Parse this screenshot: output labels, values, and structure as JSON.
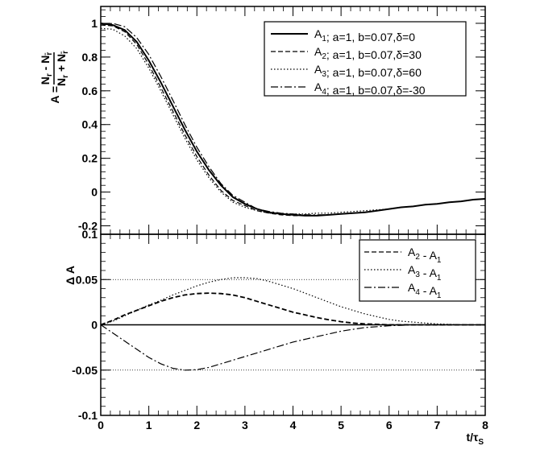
{
  "chart_data": [
    {
      "type": "line",
      "ylabel": "A = (N_r - N_r̄)/(N_r + N_r̄)",
      "xlim": [
        0,
        8
      ],
      "ylim": [
        -0.25,
        1.1
      ],
      "yticks": [
        -0.2,
        0,
        0.2,
        0.4,
        0.6,
        0.8,
        1
      ],
      "ytick_labels": [
        "-0.2",
        "0",
        "0.2",
        "0.4",
        "0.6",
        "0.8",
        "1"
      ],
      "grid": false,
      "legend_position": "top-right",
      "x": [
        0,
        0.25,
        0.5,
        0.75,
        1,
        1.25,
        1.5,
        1.75,
        2,
        2.25,
        2.5,
        2.75,
        3,
        3.25,
        3.5,
        3.75,
        4,
        4.25,
        4.5,
        4.75,
        5,
        5.25,
        5.5,
        5.75,
        6,
        6.25,
        6.5,
        6.75,
        7,
        7.25,
        7.5,
        7.75,
        8
      ],
      "series": [
        {
          "name": "A_1; a=1, b=0.07,δ=0",
          "style": "solid",
          "values": [
            1.0,
            0.99,
            0.96,
            0.89,
            0.78,
            0.65,
            0.51,
            0.37,
            0.24,
            0.13,
            0.04,
            -0.03,
            -0.07,
            -0.1,
            -0.12,
            -0.13,
            -0.135,
            -0.14,
            -0.14,
            -0.135,
            -0.13,
            -0.125,
            -0.12,
            -0.11,
            -0.1,
            -0.09,
            -0.085,
            -0.075,
            -0.07,
            -0.06,
            -0.055,
            -0.045,
            -0.04
          ]
        },
        {
          "name": "A_2; a=1, b=0.07,δ=30",
          "style": "dashed",
          "values": [
            0.99,
            0.985,
            0.95,
            0.875,
            0.755,
            0.62,
            0.48,
            0.34,
            0.21,
            0.1,
            0.01,
            -0.05,
            -0.08,
            -0.11,
            -0.125,
            -0.135,
            -0.14,
            -0.14,
            -0.14,
            -0.135,
            -0.13,
            -0.125,
            -0.12,
            -0.11,
            -0.1,
            -0.09,
            -0.085,
            -0.075,
            -0.07,
            -0.06,
            -0.055,
            -0.045,
            -0.04
          ]
        },
        {
          "name": "A_3; a=1, b=0.07,δ=60",
          "style": "dotted",
          "values": [
            0.97,
            0.965,
            0.925,
            0.85,
            0.735,
            0.6,
            0.46,
            0.32,
            0.19,
            0.085,
            0.0,
            -0.06,
            -0.09,
            -0.11,
            -0.125,
            -0.13,
            -0.13,
            -0.13,
            -0.125,
            -0.125,
            -0.12,
            -0.115,
            -0.11,
            -0.105,
            -0.1,
            -0.09,
            -0.085,
            -0.075,
            -0.07,
            -0.06,
            -0.055,
            -0.045,
            -0.04
          ]
        },
        {
          "name": "A_4; a=1, b=0.07,δ=-30",
          "style": "dashdot",
          "values": [
            0.99,
            1.0,
            0.98,
            0.915,
            0.815,
            0.685,
            0.545,
            0.4,
            0.265,
            0.15,
            0.05,
            -0.02,
            -0.06,
            -0.1,
            -0.115,
            -0.125,
            -0.13,
            -0.135,
            -0.135,
            -0.135,
            -0.13,
            -0.125,
            -0.12,
            -0.11,
            -0.1,
            -0.09,
            -0.085,
            -0.075,
            -0.07,
            -0.06,
            -0.055,
            -0.045,
            -0.04
          ]
        }
      ]
    },
    {
      "type": "line",
      "ylabel": "Δ A",
      "xlabel": "t/τ_S",
      "xlim": [
        0,
        8
      ],
      "ylim": [
        -0.1,
        0.1
      ],
      "xticks": [
        0,
        1,
        2,
        3,
        4,
        5,
        6,
        7,
        8
      ],
      "xtick_labels": [
        "0",
        "1",
        "2",
        "3",
        "4",
        "5",
        "6",
        "7",
        "8"
      ],
      "yticks": [
        -0.1,
        -0.05,
        0,
        0.05,
        0.1
      ],
      "ytick_labels": [
        "-0.1",
        "-0.05",
        "0",
        "0.05",
        "0.1"
      ],
      "reference_lines": [
        0.05,
        0,
        -0.05
      ],
      "legend_position": "top-right",
      "x": [
        0,
        0.25,
        0.5,
        0.75,
        1,
        1.25,
        1.5,
        1.75,
        2,
        2.25,
        2.5,
        2.75,
        3,
        3.25,
        3.5,
        3.75,
        4,
        4.25,
        4.5,
        4.75,
        5,
        5.25,
        5.5,
        5.75,
        6,
        6.25,
        6.5,
        6.75,
        7,
        7.25,
        7.5,
        7.75,
        8
      ],
      "series": [
        {
          "name": "A_2 - A_1",
          "style": "dashed",
          "values": [
            0.0,
            0.005,
            0.011,
            0.016,
            0.021,
            0.026,
            0.03,
            0.033,
            0.0345,
            0.035,
            0.0345,
            0.033,
            0.03,
            0.026,
            0.022,
            0.018,
            0.014,
            0.011,
            0.008,
            0.0055,
            0.0035,
            0.002,
            0.001,
            0.0005,
            0.0,
            0.0,
            0.0,
            0.0,
            0.0,
            0.0,
            0.0,
            0.0,
            0.0
          ]
        },
        {
          "name": "A_3 - A_1",
          "style": "dotted",
          "values": [
            0.0,
            0.004,
            0.01,
            0.016,
            0.022,
            0.027,
            0.033,
            0.038,
            0.043,
            0.047,
            0.05,
            0.052,
            0.052,
            0.051,
            0.048,
            0.044,
            0.04,
            0.035,
            0.03,
            0.025,
            0.02,
            0.016,
            0.012,
            0.009,
            0.006,
            0.004,
            0.003,
            0.002,
            0.001,
            0.0005,
            0.0,
            0.0,
            0.0
          ]
        },
        {
          "name": "A_4 - A_1",
          "style": "dashdot",
          "values": [
            0.0,
            -0.009,
            -0.018,
            -0.027,
            -0.036,
            -0.043,
            -0.048,
            -0.05,
            -0.0495,
            -0.047,
            -0.043,
            -0.039,
            -0.035,
            -0.031,
            -0.027,
            -0.023,
            -0.019,
            -0.016,
            -0.013,
            -0.01,
            -0.007,
            -0.005,
            -0.003,
            -0.002,
            -0.001,
            -0.0005,
            0.0,
            0.0,
            0.0,
            0.0,
            0.0,
            0.0,
            0.0
          ]
        }
      ]
    }
  ]
}
